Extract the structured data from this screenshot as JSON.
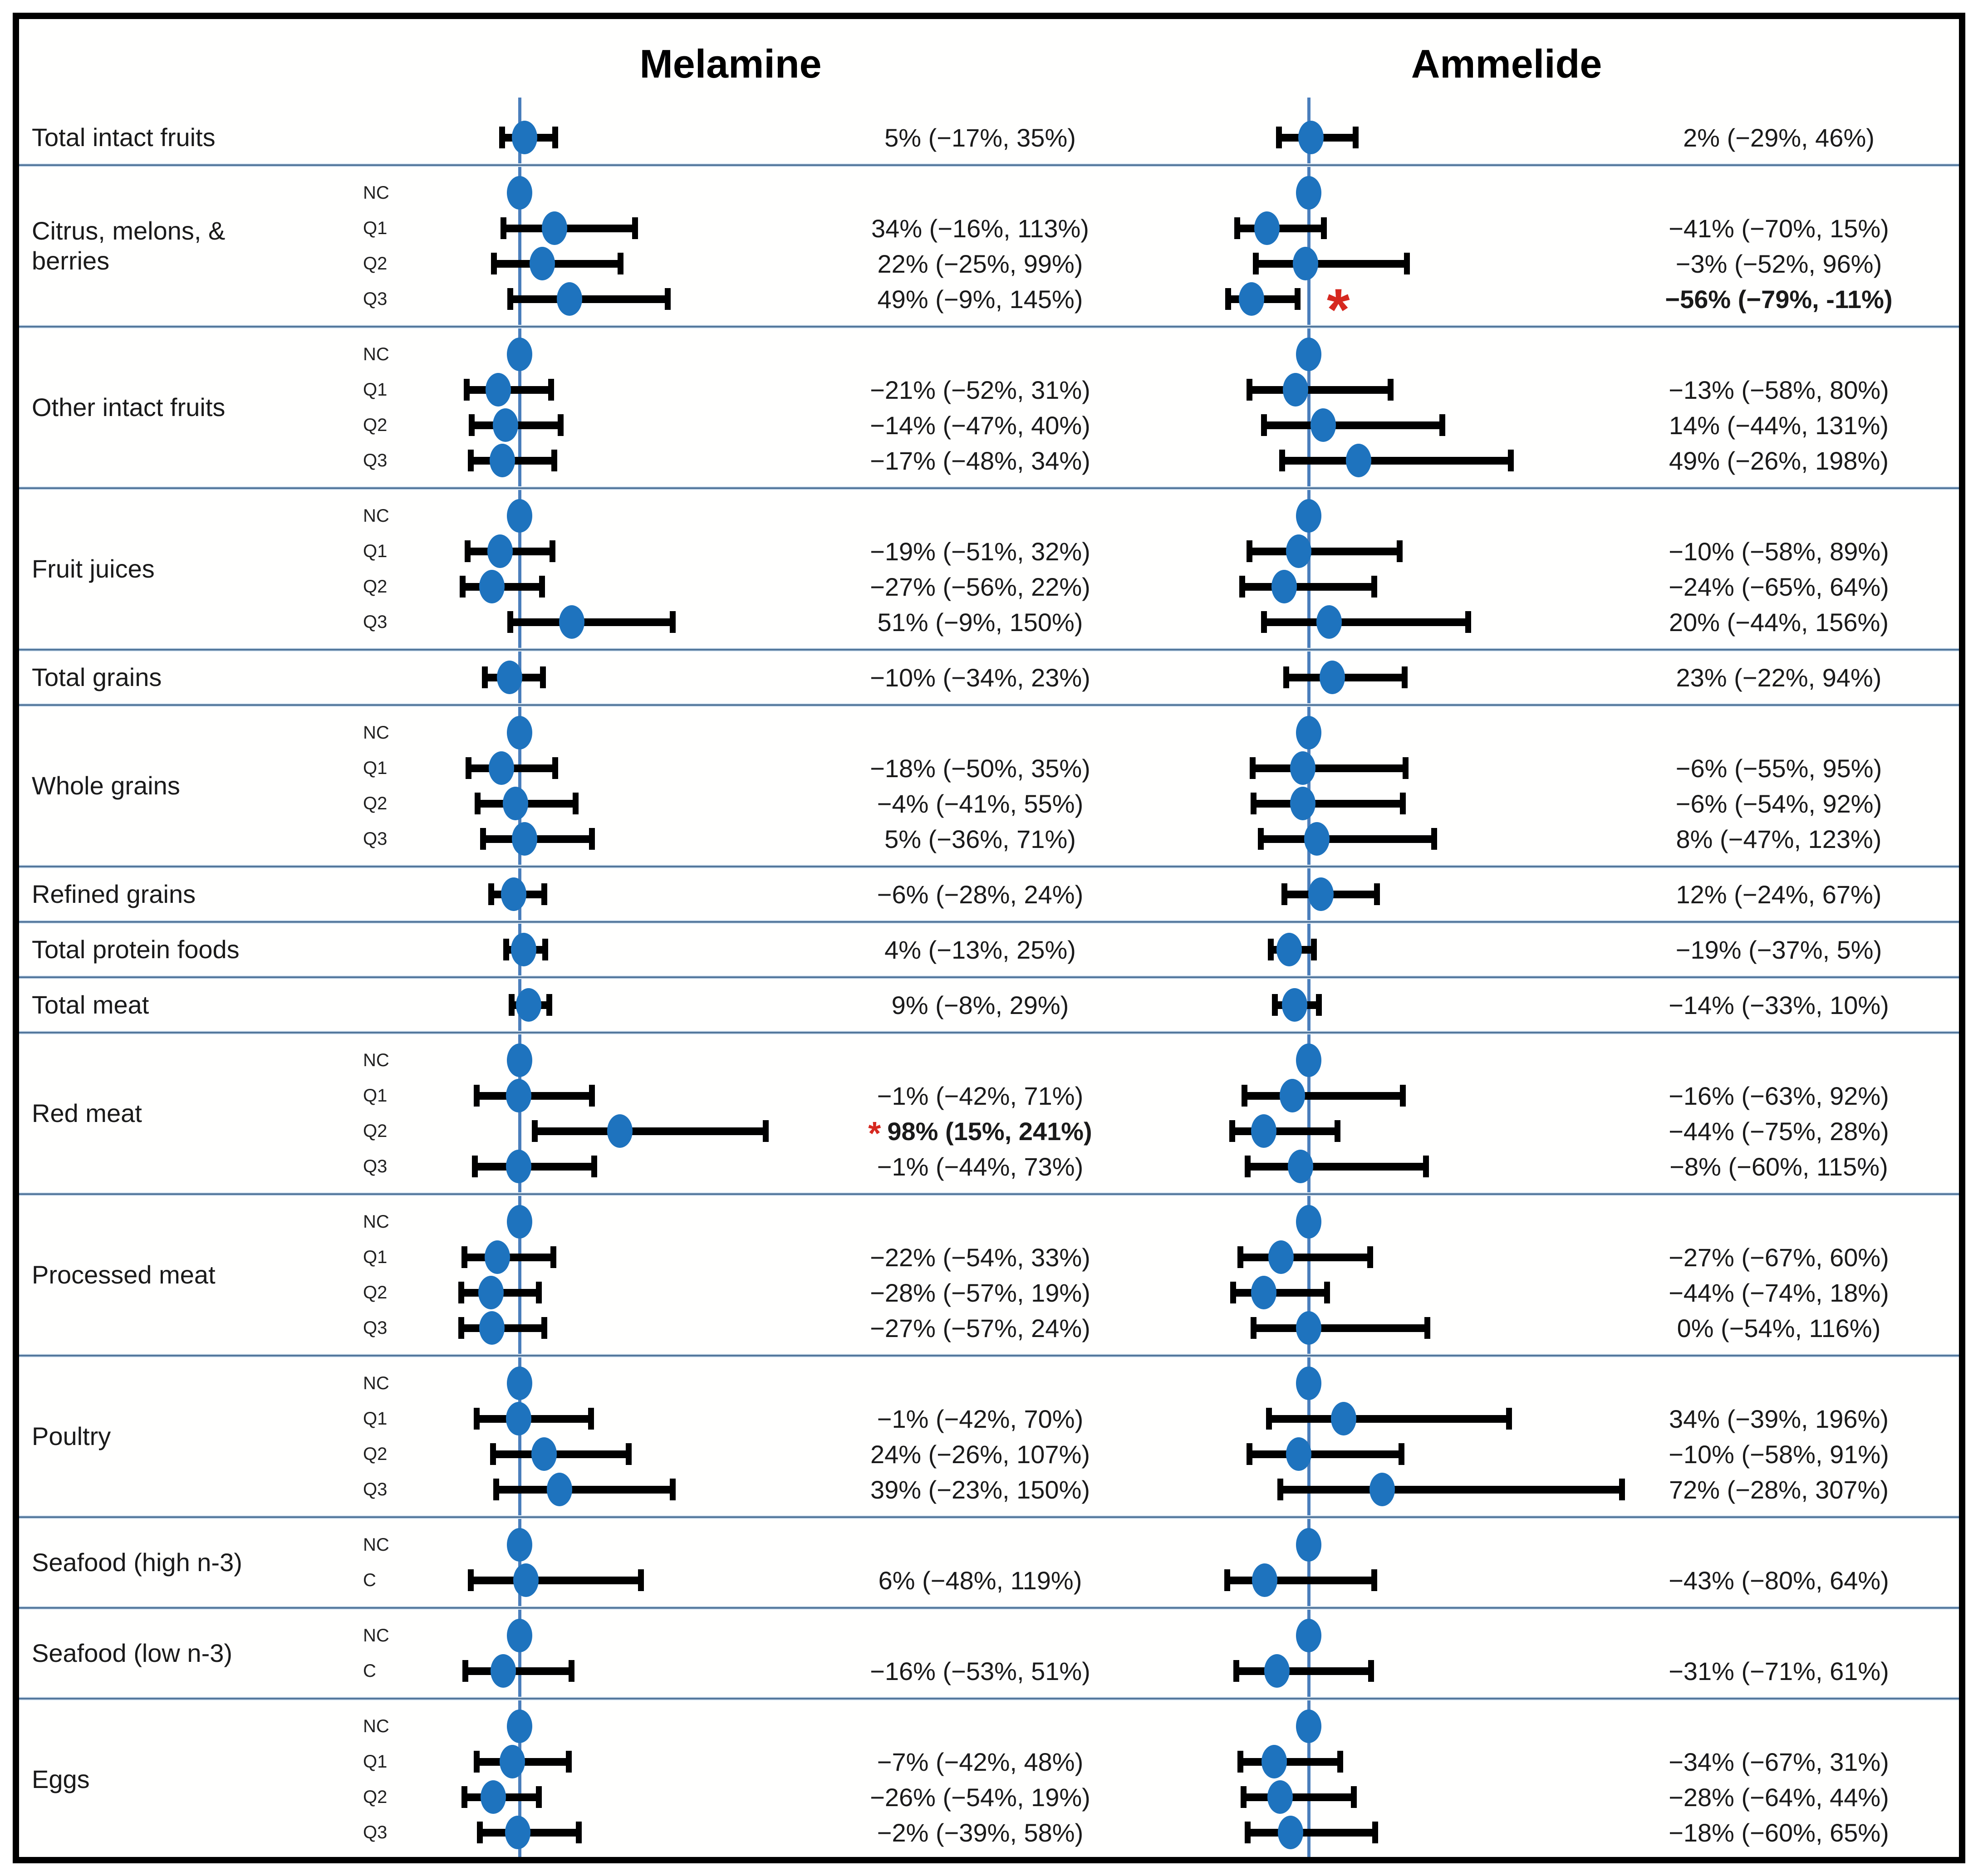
{
  "colors": {
    "dot": "#1e73be",
    "reference_line": "#4a7ebb",
    "error_bar": "#000000",
    "significant_marker": "#d6281f",
    "separator_dark": "#54789d",
    "separator_light": "#d9e6f2",
    "figure_border": "#000000",
    "text": "#1a1a1a"
  },
  "chart_data": {
    "type": "forest",
    "panels": [
      "Melamine",
      "Ammelide"
    ],
    "x_axis": {
      "unit": "percent change",
      "reference": 0,
      "scale": "linear",
      "gridlines": false
    },
    "legend": "none",
    "significance_symbol": "*",
    "rows": [
      {
        "category": "Total intact fruits",
        "subs": [
          {
            "tag": "",
            "m": {
              "est": 5,
              "lo": -17,
              "hi": 35,
              "text": "5% (−17%, 35%)"
            },
            "a": {
              "est": 2,
              "lo": -29,
              "hi": 46,
              "text": "2% (−29%, 46%)"
            }
          }
        ]
      },
      {
        "category": "Citrus, melons, & berries",
        "subs": [
          {
            "tag": "NC",
            "m": {
              "ref": true
            },
            "a": {
              "ref": true
            }
          },
          {
            "tag": "Q1",
            "m": {
              "est": 34,
              "lo": -16,
              "hi": 113,
              "text": "34% (−16%, 113%)"
            },
            "a": {
              "est": -41,
              "lo": -70,
              "hi": 15,
              "text": "−41% (−70%, 15%)"
            }
          },
          {
            "tag": "Q2",
            "m": {
              "est": 22,
              "lo": -25,
              "hi": 99,
              "text": "22% (−25%, 99%)"
            },
            "a": {
              "est": -3,
              "lo": -52,
              "hi": 96,
              "text": "−3% (−52%, 96%)"
            }
          },
          {
            "tag": "Q3",
            "m": {
              "est": 49,
              "lo": -9,
              "hi": 145,
              "text": "49% (−9%, 145%)"
            },
            "a": {
              "est": -56,
              "lo": -79,
              "hi": -11,
              "text": "−56% (−79%, -11%)",
              "bold": true,
              "star": "plot"
            }
          }
        ]
      },
      {
        "category": "Other intact fruits",
        "subs": [
          {
            "tag": "NC",
            "m": {
              "ref": true
            },
            "a": {
              "ref": true
            }
          },
          {
            "tag": "Q1",
            "m": {
              "est": -21,
              "lo": -52,
              "hi": 31,
              "text": "−21% (−52%, 31%)"
            },
            "a": {
              "est": -13,
              "lo": -58,
              "hi": 80,
              "text": "−13% (−58%, 80%)"
            }
          },
          {
            "tag": "Q2",
            "m": {
              "est": -14,
              "lo": -47,
              "hi": 40,
              "text": "−14% (−47%, 40%)"
            },
            "a": {
              "est": 14,
              "lo": -44,
              "hi": 131,
              "text": "14% (−44%, 131%)"
            }
          },
          {
            "tag": "Q3",
            "m": {
              "est": -17,
              "lo": -48,
              "hi": 34,
              "text": "−17% (−48%, 34%)"
            },
            "a": {
              "est": 49,
              "lo": -26,
              "hi": 198,
              "text": "49% (−26%, 198%)"
            }
          }
        ]
      },
      {
        "category": "Fruit juices",
        "subs": [
          {
            "tag": "NC",
            "m": {
              "ref": true
            },
            "a": {
              "ref": true
            }
          },
          {
            "tag": "Q1",
            "m": {
              "est": -19,
              "lo": -51,
              "hi": 32,
              "text": "−19% (−51%, 32%)"
            },
            "a": {
              "est": -10,
              "lo": -58,
              "hi": 89,
              "text": "−10% (−58%, 89%)"
            }
          },
          {
            "tag": "Q2",
            "m": {
              "est": -27,
              "lo": -56,
              "hi": 22,
              "text": "−27% (−56%, 22%)"
            },
            "a": {
              "est": -24,
              "lo": -65,
              "hi": 64,
              "text": "−24% (−65%, 64%)"
            }
          },
          {
            "tag": "Q3",
            "m": {
              "est": 51,
              "lo": -9,
              "hi": 150,
              "text": "51% (−9%, 150%)"
            },
            "a": {
              "est": 20,
              "lo": -44,
              "hi": 156,
              "text": "20% (−44%, 156%)"
            }
          }
        ]
      },
      {
        "category": "Total grains",
        "subs": [
          {
            "tag": "",
            "m": {
              "est": -10,
              "lo": -34,
              "hi": 23,
              "text": "−10% (−34%, 23%)"
            },
            "a": {
              "est": 23,
              "lo": -22,
              "hi": 94,
              "text": "23% (−22%, 94%)"
            }
          }
        ]
      },
      {
        "category": "Whole grains",
        "subs": [
          {
            "tag": "NC",
            "m": {
              "ref": true
            },
            "a": {
              "ref": true
            }
          },
          {
            "tag": "Q1",
            "m": {
              "est": -18,
              "lo": -50,
              "hi": 35,
              "text": "−18% (−50%, 35%)"
            },
            "a": {
              "est": -6,
              "lo": -55,
              "hi": 95,
              "text": "−6% (−55%, 95%)"
            }
          },
          {
            "tag": "Q2",
            "m": {
              "est": -4,
              "lo": -41,
              "hi": 55,
              "text": "−4% (−41%, 55%)"
            },
            "a": {
              "est": -6,
              "lo": -54,
              "hi": 92,
              "text": "−6% (−54%, 92%)"
            }
          },
          {
            "tag": "Q3",
            "m": {
              "est": 5,
              "lo": -36,
              "hi": 71,
              "text": "5% (−36%, 71%)"
            },
            "a": {
              "est": 8,
              "lo": -47,
              "hi": 123,
              "text": "8% (−47%, 123%)"
            }
          }
        ]
      },
      {
        "category": "Refined grains",
        "subs": [
          {
            "tag": "",
            "m": {
              "est": -6,
              "lo": -28,
              "hi": 24,
              "text": "−6% (−28%, 24%)"
            },
            "a": {
              "est": 12,
              "lo": -24,
              "hi": 67,
              "text": "12% (−24%, 67%)"
            }
          }
        ]
      },
      {
        "category": "Total protein foods",
        "subs": [
          {
            "tag": "",
            "m": {
              "est": 4,
              "lo": -13,
              "hi": 25,
              "text": "4% (−13%, 25%)"
            },
            "a": {
              "est": -19,
              "lo": -37,
              "hi": 5,
              "text": "−19% (−37%, 5%)"
            }
          }
        ]
      },
      {
        "category": "Total meat",
        "subs": [
          {
            "tag": "",
            "m": {
              "est": 9,
              "lo": -8,
              "hi": 29,
              "text": "9% (−8%, 29%)"
            },
            "a": {
              "est": -14,
              "lo": -33,
              "hi": 10,
              "text": "−14% (−33%, 10%)"
            }
          }
        ]
      },
      {
        "category": "Red meat",
        "subs": [
          {
            "tag": "NC",
            "m": {
              "ref": true
            },
            "a": {
              "ref": true
            }
          },
          {
            "tag": "Q1",
            "m": {
              "est": -1,
              "lo": -42,
              "hi": 71,
              "text": "−1% (−42%, 71%)"
            },
            "a": {
              "est": -16,
              "lo": -63,
              "hi": 92,
              "text": "−16% (−63%, 92%)"
            }
          },
          {
            "tag": "Q2",
            "m": {
              "est": 98,
              "lo": 15,
              "hi": 241,
              "text": "98% (15%, 241%)",
              "bold": true,
              "star": "text"
            },
            "a": {
              "est": -44,
              "lo": -75,
              "hi": 28,
              "text": "−44% (−75%, 28%)"
            }
          },
          {
            "tag": "Q3",
            "m": {
              "est": -1,
              "lo": -44,
              "hi": 73,
              "text": "−1% (−44%, 73%)"
            },
            "a": {
              "est": -8,
              "lo": -60,
              "hi": 115,
              "text": "−8% (−60%, 115%)"
            }
          }
        ]
      },
      {
        "category": "Processed meat",
        "subs": [
          {
            "tag": "NC",
            "m": {
              "ref": true
            },
            "a": {
              "ref": true
            }
          },
          {
            "tag": "Q1",
            "m": {
              "est": -22,
              "lo": -54,
              "hi": 33,
              "text": "−22% (−54%, 33%)"
            },
            "a": {
              "est": -27,
              "lo": -67,
              "hi": 60,
              "text": "−27% (−67%, 60%)"
            }
          },
          {
            "tag": "Q2",
            "m": {
              "est": -28,
              "lo": -57,
              "hi": 19,
              "text": "−28% (−57%, 19%)"
            },
            "a": {
              "est": -44,
              "lo": -74,
              "hi": 18,
              "text": "−44% (−74%, 18%)"
            }
          },
          {
            "tag": "Q3",
            "m": {
              "est": -27,
              "lo": -57,
              "hi": 24,
              "text": "−27% (−57%, 24%)"
            },
            "a": {
              "est": 0,
              "lo": -54,
              "hi": 116,
              "text": "0% (−54%, 116%)"
            }
          }
        ]
      },
      {
        "category": "Poultry",
        "subs": [
          {
            "tag": "NC",
            "m": {
              "ref": true
            },
            "a": {
              "ref": true
            }
          },
          {
            "tag": "Q1",
            "m": {
              "est": -1,
              "lo": -42,
              "hi": 70,
              "text": "−1% (−42%, 70%)"
            },
            "a": {
              "est": 34,
              "lo": -39,
              "hi": 196,
              "text": "34% (−39%, 196%)"
            }
          },
          {
            "tag": "Q2",
            "m": {
              "est": 24,
              "lo": -26,
              "hi": 107,
              "text": "24% (−26%, 107%)"
            },
            "a": {
              "est": -10,
              "lo": -58,
              "hi": 91,
              "text": "−10% (−58%, 91%)"
            }
          },
          {
            "tag": "Q3",
            "m": {
              "est": 39,
              "lo": -23,
              "hi": 150,
              "text": "39% (−23%, 150%)"
            },
            "a": {
              "est": 72,
              "lo": -28,
              "hi": 307,
              "text": "72% (−28%, 307%)"
            }
          }
        ]
      },
      {
        "category": "Seafood (high n-3)",
        "subs": [
          {
            "tag": "NC",
            "m": {
              "ref": true
            },
            "a": {
              "ref": true
            }
          },
          {
            "tag": "C",
            "m": {
              "est": 6,
              "lo": -48,
              "hi": 119,
              "text": "6% (−48%, 119%)"
            },
            "a": {
              "est": -43,
              "lo": -80,
              "hi": 64,
              "text": "−43% (−80%, 64%)"
            }
          }
        ]
      },
      {
        "category": "Seafood (low n-3)",
        "subs": [
          {
            "tag": "NC",
            "m": {
              "ref": true
            },
            "a": {
              "ref": true
            }
          },
          {
            "tag": "C",
            "m": {
              "est": -16,
              "lo": -53,
              "hi": 51,
              "text": "−16% (−53%, 51%)"
            },
            "a": {
              "est": -31,
              "lo": -71,
              "hi": 61,
              "text": "−31% (−71%, 61%)"
            }
          }
        ]
      },
      {
        "category": "Eggs",
        "subs": [
          {
            "tag": "NC",
            "m": {
              "ref": true
            },
            "a": {
              "ref": true
            }
          },
          {
            "tag": "Q1",
            "m": {
              "est": -7,
              "lo": -42,
              "hi": 48,
              "text": "−7% (−42%, 48%)"
            },
            "a": {
              "est": -34,
              "lo": -67,
              "hi": 31,
              "text": "−34% (−67%, 31%)"
            }
          },
          {
            "tag": "Q2",
            "m": {
              "est": -26,
              "lo": -54,
              "hi": 19,
              "text": "−26% (−54%, 19%)"
            },
            "a": {
              "est": -28,
              "lo": -64,
              "hi": 44,
              "text": "−28% (−64%, 44%)"
            }
          },
          {
            "tag": "Q3",
            "m": {
              "est": -2,
              "lo": -39,
              "hi": 58,
              "text": "−2% (−39%, 58%)"
            },
            "a": {
              "est": -18,
              "lo": -60,
              "hi": 65,
              "text": "−18% (−60%, 65%)"
            }
          }
        ]
      }
    ]
  }
}
